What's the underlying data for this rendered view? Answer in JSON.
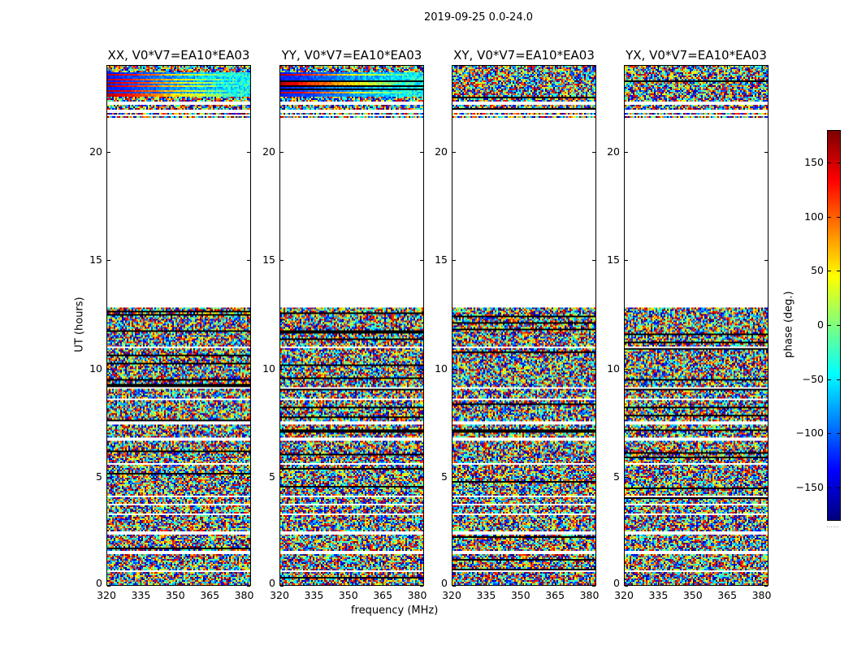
{
  "suptitle": "2019-09-25 0.0-24.0",
  "chart_data": {
    "type": "heatmap",
    "xlabel": "frequency (MHz)",
    "ylabel": "UT (hours)",
    "xlim": [
      320,
      383
    ],
    "ylim": [
      0,
      24
    ],
    "xticks": [
      "320",
      "335",
      "350",
      "365",
      "380"
    ],
    "xtick_values": [
      320,
      335,
      350,
      365,
      380
    ],
    "yticks": [
      "0",
      "5",
      "10",
      "15",
      "20"
    ],
    "ytick_values": [
      0,
      5,
      10,
      15,
      20
    ],
    "panels": [
      {
        "title": "XX, V0*V7=EA10*EA03",
        "coherent_band_ut": [
          22.6,
          23.7
        ]
      },
      {
        "title": "YY, V0*V7=EA10*EA03",
        "coherent_band_ut": [
          22.6,
          23.7
        ]
      },
      {
        "title": "XY, V0*V7=EA10*EA03",
        "coherent_band_ut": null
      },
      {
        "title": "YX, V0*V7=EA10*EA03",
        "coherent_band_ut": null
      }
    ],
    "flagged_ut_ranges": [
      [
        12.8,
        21.6
      ],
      [
        22.2,
        22.35
      ],
      [
        21.85,
        21.95
      ],
      [
        21.7,
        21.75
      ],
      [
        10.95,
        11.05
      ],
      [
        9.05,
        9.15
      ],
      [
        8.55,
        8.65
      ],
      [
        7.45,
        7.55
      ],
      [
        6.7,
        6.8
      ],
      [
        5.55,
        5.6
      ],
      [
        4.05,
        4.12
      ],
      [
        3.7,
        3.78
      ],
      [
        3.22,
        3.3
      ],
      [
        2.35,
        2.45
      ],
      [
        1.45,
        1.55
      ],
      [
        0.6,
        0.68
      ]
    ],
    "colorbar": {
      "label": "phase (deg.)",
      "colormap": "jet",
      "range": [
        -180,
        180
      ],
      "ticks": [
        "150",
        "100",
        "50",
        "0",
        "−50",
        "−100",
        "−150"
      ],
      "tick_values": [
        150,
        100,
        50,
        0,
        -50,
        -100,
        -150
      ]
    }
  }
}
